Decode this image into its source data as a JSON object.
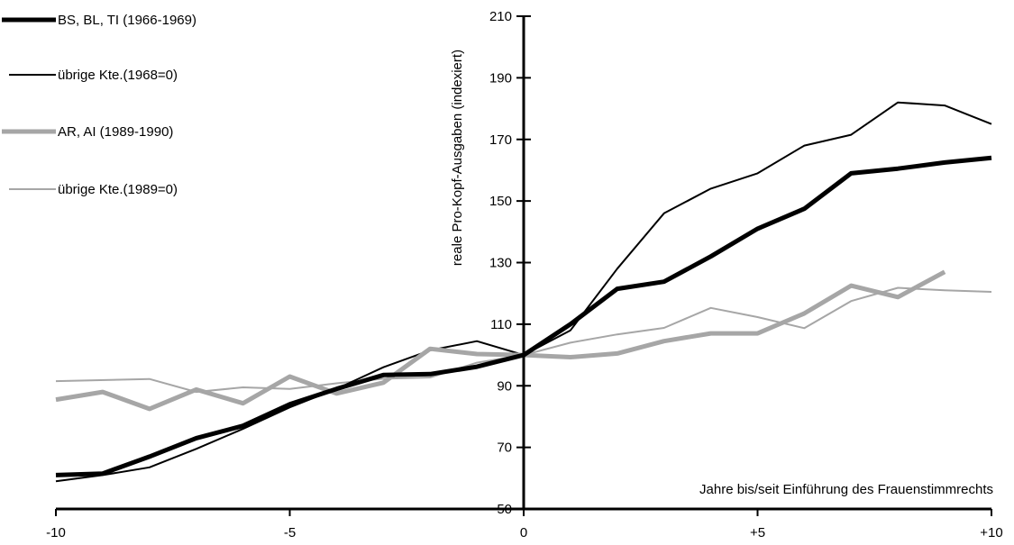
{
  "chart_data": {
    "type": "line",
    "title": "",
    "xlabel": "Jahre bis/seit Einführung des Frauenstimmrechts",
    "ylabel": "reale Pro-Kopf-Ausgaben (indexiert)",
    "xlim": [
      -10,
      10
    ],
    "ylim": [
      50,
      210
    ],
    "x_ticks": [
      -10,
      -5,
      0,
      5,
      10
    ],
    "x_tick_labels": [
      "-10",
      "-5",
      "0",
      "+5",
      "+10"
    ],
    "y_ticks": [
      50,
      70,
      90,
      110,
      130,
      150,
      170,
      190,
      210
    ],
    "y_tick_labels": [
      "50",
      "70",
      "90",
      "110",
      "130",
      "150",
      "170",
      "190",
      "210"
    ],
    "grid": false,
    "legend_position": "top-left",
    "series": [
      {
        "name": "BS, BL, TI (1966-1969)",
        "color": "#000000",
        "style": "thick",
        "x": [
          -10,
          -9,
          -8,
          -7,
          -6,
          -5,
          -4,
          -3,
          -2,
          -1,
          0,
          1,
          2,
          3,
          4,
          5,
          6,
          7,
          8,
          9,
          10
        ],
        "values": [
          61,
          61.5,
          67,
          73,
          77,
          84,
          89,
          93.5,
          93.8,
          96.2,
          100,
          110,
          121.5,
          123.8,
          132,
          141,
          147.5,
          159,
          160.5,
          162.5,
          164
        ]
      },
      {
        "name": "übrige Kte.(1968=0)",
        "color": "#000000",
        "style": "thin",
        "x": [
          -10,
          -9,
          -8,
          -7,
          -6,
          -5,
          -4,
          -3,
          -2,
          -1,
          0,
          1,
          2,
          3,
          4,
          5,
          6,
          7,
          8,
          9,
          10
        ],
        "values": [
          59,
          61,
          63.5,
          69.5,
          76,
          83,
          89,
          96,
          101.5,
          104.5,
          100,
          108,
          128,
          146,
          154,
          159,
          168,
          171.5,
          182,
          181,
          175
        ]
      },
      {
        "name": "AR, AI (1989-1990)",
        "color": "#a6a6a6",
        "style": "thick",
        "x": [
          -10,
          -9,
          -8,
          -7,
          -6,
          -5,
          -4,
          -3,
          -2,
          -1,
          0,
          1,
          2,
          3,
          4,
          5,
          6,
          7,
          8,
          9
        ],
        "values": [
          85.5,
          88,
          82.5,
          88.8,
          84.3,
          93,
          87.5,
          91,
          102,
          100.3,
          100,
          99.3,
          100.5,
          104.5,
          107,
          107,
          113.5,
          122.5,
          118.8,
          127
        ]
      },
      {
        "name": "übrige Kte.(1989=0)",
        "color": "#a6a6a6",
        "style": "thin",
        "x": [
          -10,
          -8,
          -7,
          -6,
          -5,
          -4,
          -3,
          -2,
          -1,
          0,
          1,
          2,
          3,
          4,
          5,
          6,
          7,
          8,
          9,
          10
        ],
        "values": [
          91.5,
          92.2,
          88,
          89.5,
          89,
          90.8,
          92.3,
          92.7,
          97.5,
          100,
          104,
          106.7,
          108.8,
          115.3,
          112.3,
          108.7,
          117.5,
          121.8,
          121,
          120.5
        ]
      }
    ]
  }
}
